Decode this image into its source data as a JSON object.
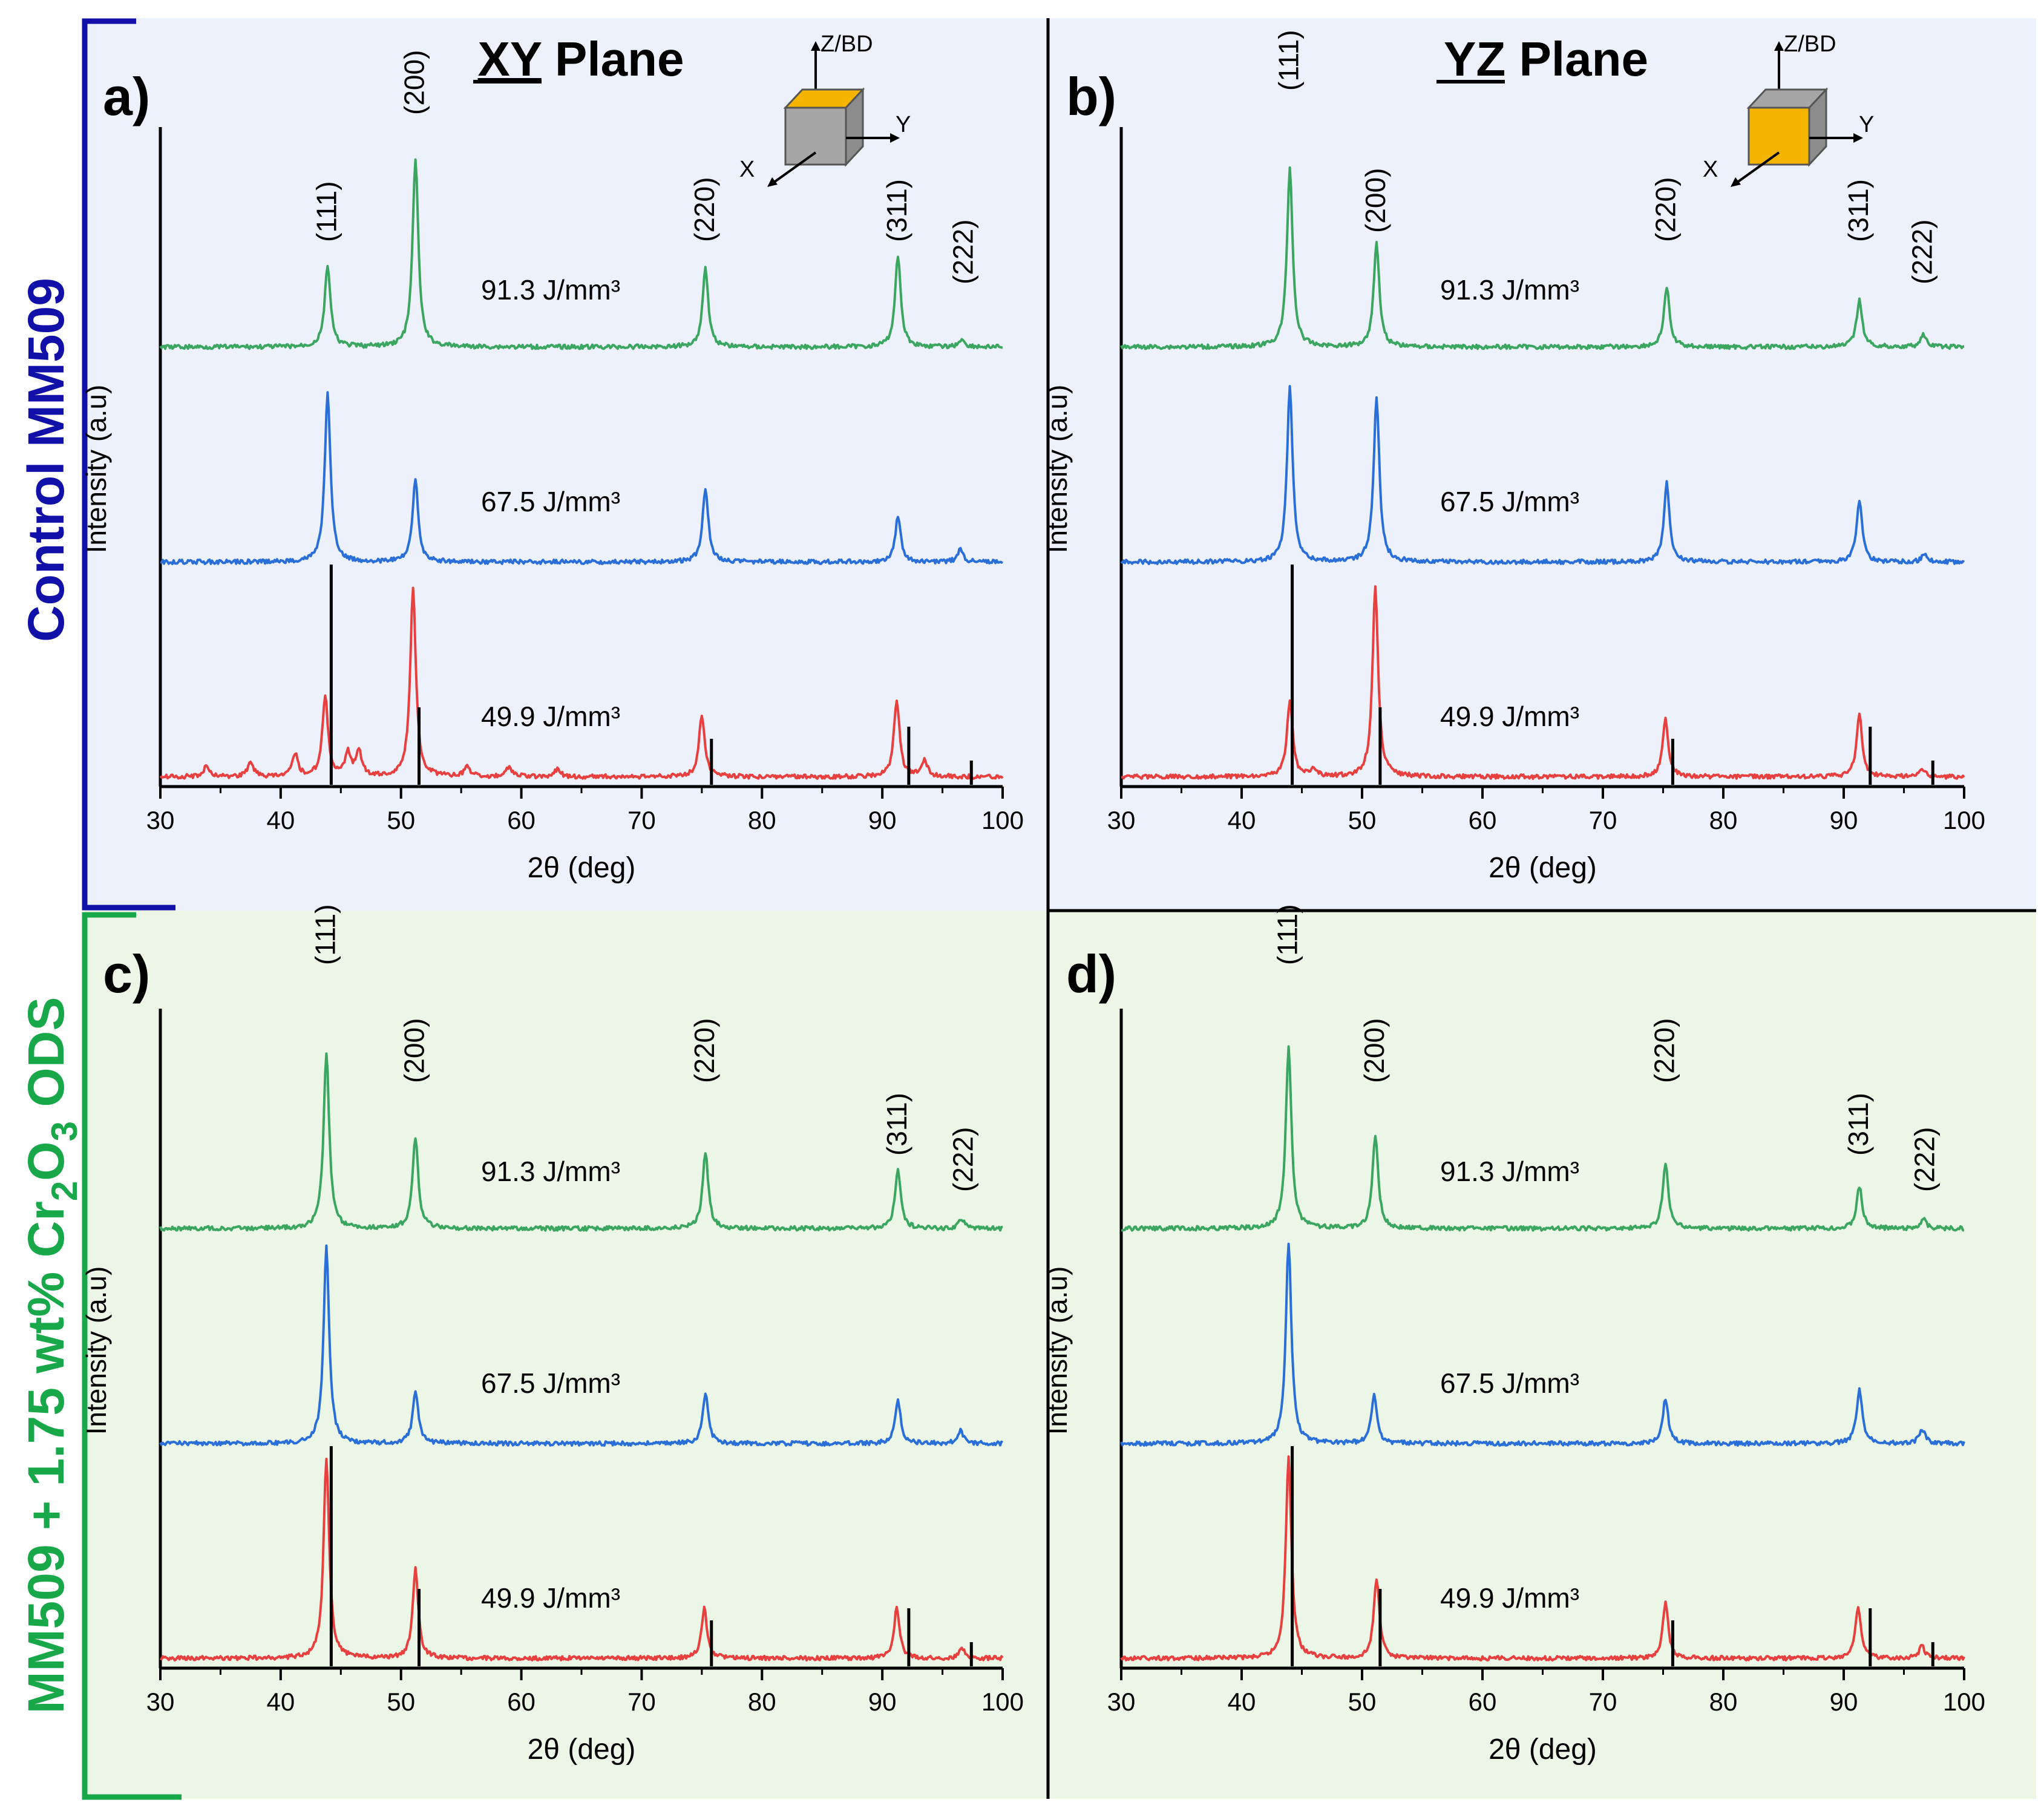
{
  "row_labels": {
    "top": "Control MM509",
    "bottom_prefix": "MM509 + 1.75 wt% Cr",
    "bottom_sub1": "2",
    "bottom_mid": "O",
    "bottom_sub2": "3",
    "bottom_suffix": " ODS"
  },
  "planes": {
    "xy": {
      "bold": "XY",
      "rest": " Plane"
    },
    "yz": {
      "bold": "YZ",
      "rest": " Plane"
    }
  },
  "axes_icon": {
    "z": "Z/BD",
    "x": "X",
    "y": "Y"
  },
  "colors": {
    "top_bg": "#edf1fb",
    "bottom_bg": "#ecf6e7",
    "top_bracket": "#1111aa",
    "bottom_bracket": "#18a84a",
    "green": "#3aa660",
    "blue": "#2a6ed8",
    "red": "#e83f3f",
    "face_top": "#f5b400",
    "cube": "#a6a6a6"
  },
  "chart_data": [
    {
      "panel_label": "a)",
      "type": "line",
      "title": "XY Plane",
      "xlabel": "2θ (deg)",
      "ylabel": "Intensity (a.u)",
      "xlim": [
        30,
        100
      ],
      "xticks": [
        30,
        40,
        50,
        60,
        70,
        80,
        90,
        100
      ],
      "series": [
        {
          "name": "91.3 J/mm³",
          "color": "green",
          "baseline": 0.16,
          "peaks": [
            [
              43.9,
              0.33
            ],
            [
              51.2,
              0.76
            ],
            [
              75.3,
              0.32
            ],
            [
              91.3,
              0.37
            ],
            [
              96.6,
              0.03
            ]
          ]
        },
        {
          "name": "67.5 J/mm³",
          "color": "blue",
          "baseline": 0.03,
          "peaks": [
            [
              43.9,
              0.68
            ],
            [
              51.2,
              0.33
            ],
            [
              75.3,
              0.3
            ],
            [
              91.3,
              0.18
            ],
            [
              96.5,
              0.05
            ]
          ]
        },
        {
          "name": "49.9 J/mm³",
          "color": "red",
          "baseline": 0.03,
          "peaks": [
            [
              33.8,
              0.04
            ],
            [
              37.5,
              0.06
            ],
            [
              41.2,
              0.09
            ],
            [
              43.7,
              0.32
            ],
            [
              45.6,
              0.09
            ],
            [
              46.5,
              0.1
            ],
            [
              51.0,
              0.76
            ],
            [
              55.5,
              0.04
            ],
            [
              59.0,
              0.04
            ],
            [
              63.0,
              0.03
            ],
            [
              75.0,
              0.25
            ],
            [
              91.2,
              0.31
            ],
            [
              93.5,
              0.07
            ]
          ]
        }
      ],
      "reference_lines": [
        {
          "x": 44.2,
          "height": 0.88
        },
        {
          "x": 51.5,
          "height": 0.29
        },
        {
          "x": 75.8,
          "height": 0.16
        },
        {
          "x": 92.2,
          "height": 0.21
        },
        {
          "x": 97.4,
          "height": 0.07
        }
      ],
      "peak_labels": [
        {
          "text": "(111)",
          "x": 43.9
        },
        {
          "text": "(200)",
          "x": 51.2
        },
        {
          "text": "(220)",
          "x": 75.3
        },
        {
          "text": "(311)",
          "x": 91.3
        },
        {
          "text": "(222)",
          "x": 96.8
        }
      ]
    },
    {
      "panel_label": "b)",
      "type": "line",
      "title": "YZ Plane",
      "xlabel": "2θ (deg)",
      "ylabel": "Intensity (a.u)",
      "xlim": [
        30,
        100
      ],
      "xticks": [
        30,
        40,
        50,
        60,
        70,
        80,
        90,
        100
      ],
      "series": [
        {
          "name": "91.3 J/mm³",
          "color": "green",
          "baseline": 0.16,
          "peaks": [
            [
              44.0,
              0.72
            ],
            [
              51.2,
              0.42
            ],
            [
              75.3,
              0.24
            ],
            [
              91.3,
              0.19
            ],
            [
              96.6,
              0.05
            ]
          ]
        },
        {
          "name": "67.5 J/mm³",
          "color": "blue",
          "baseline": 0.03,
          "peaks": [
            [
              44.0,
              0.7
            ],
            [
              51.2,
              0.67
            ],
            [
              75.3,
              0.32
            ],
            [
              91.3,
              0.25
            ],
            [
              96.7,
              0.03
            ]
          ]
        },
        {
          "name": "49.9 J/mm³",
          "color": "red",
          "baseline": 0.03,
          "peaks": [
            [
              44.0,
              0.31
            ],
            [
              46.0,
              0.03
            ],
            [
              51.1,
              0.76
            ],
            [
              75.2,
              0.23
            ],
            [
              91.3,
              0.25
            ],
            [
              96.5,
              0.03
            ]
          ]
        }
      ],
      "reference_lines": [
        {
          "x": 44.2,
          "height": 0.88
        },
        {
          "x": 51.5,
          "height": 0.29
        },
        {
          "x": 75.8,
          "height": 0.16
        },
        {
          "x": 92.2,
          "height": 0.21
        },
        {
          "x": 97.4,
          "height": 0.07
        }
      ],
      "peak_labels": [
        {
          "text": "(111)",
          "x": 44.0
        },
        {
          "text": "(200)",
          "x": 51.2
        },
        {
          "text": "(220)",
          "x": 75.3
        },
        {
          "text": "(311)",
          "x": 91.3
        },
        {
          "text": "(222)",
          "x": 96.6
        }
      ]
    },
    {
      "panel_label": "c)",
      "type": "line",
      "title": "",
      "xlabel": "2θ (deg)",
      "ylabel": "Intensity (a.u)",
      "xlim": [
        30,
        100
      ],
      "xticks": [
        30,
        40,
        50,
        60,
        70,
        80,
        90,
        100
      ],
      "series": [
        {
          "name": "91.3 J/mm³",
          "color": "green",
          "baseline": 0.16,
          "peaks": [
            [
              43.8,
              0.71
            ],
            [
              51.2,
              0.37
            ],
            [
              75.3,
              0.31
            ],
            [
              91.3,
              0.24
            ],
            [
              96.6,
              0.04
            ]
          ]
        },
        {
          "name": "67.5 J/mm³",
          "color": "blue",
          "baseline": 0.03,
          "peaks": [
            [
              43.8,
              0.79
            ],
            [
              51.2,
              0.21
            ],
            [
              75.3,
              0.2
            ],
            [
              91.3,
              0.17
            ],
            [
              96.5,
              0.05
            ]
          ]
        },
        {
          "name": "49.9 J/mm³",
          "color": "red",
          "baseline": 0.03,
          "peaks": [
            [
              43.8,
              0.8
            ],
            [
              51.2,
              0.36
            ],
            [
              75.2,
              0.2
            ],
            [
              91.2,
              0.2
            ],
            [
              96.6,
              0.04
            ]
          ]
        }
      ],
      "reference_lines": [
        {
          "x": 44.2,
          "height": 0.88
        },
        {
          "x": 51.5,
          "height": 0.29
        },
        {
          "x": 75.8,
          "height": 0.16
        },
        {
          "x": 92.2,
          "height": 0.21
        },
        {
          "x": 97.4,
          "height": 0.07
        }
      ],
      "peak_labels": [
        {
          "text": "(111)",
          "x": 43.8
        },
        {
          "text": "(200)",
          "x": 51.2
        },
        {
          "text": "(220)",
          "x": 75.3
        },
        {
          "text": "(311)",
          "x": 91.3
        },
        {
          "text": "(222)",
          "x": 96.8
        }
      ]
    },
    {
      "panel_label": "d)",
      "type": "line",
      "title": "",
      "xlabel": "2θ (deg)",
      "ylabel": "Intensity (a.u)",
      "xlim": [
        30,
        100
      ],
      "xticks": [
        30,
        40,
        50,
        60,
        70,
        80,
        90,
        100
      ],
      "series": [
        {
          "name": "91.3 J/mm³",
          "color": "green",
          "baseline": 0.16,
          "peaks": [
            [
              43.9,
              0.73
            ],
            [
              51.1,
              0.38
            ],
            [
              75.2,
              0.26
            ],
            [
              91.3,
              0.17
            ],
            [
              96.6,
              0.04
            ]
          ]
        },
        {
          "name": "67.5 J/mm³",
          "color": "blue",
          "baseline": 0.03,
          "peaks": [
            [
              43.9,
              0.81
            ],
            [
              51.0,
              0.19
            ],
            [
              75.2,
              0.18
            ],
            [
              91.3,
              0.22
            ],
            [
              96.5,
              0.06
            ]
          ]
        },
        {
          "name": "49.9 J/mm³",
          "color": "red",
          "baseline": 0.03,
          "peaks": [
            [
              43.9,
              0.81
            ],
            [
              51.2,
              0.32
            ],
            [
              75.2,
              0.22
            ],
            [
              91.2,
              0.21
            ],
            [
              96.5,
              0.05
            ]
          ]
        }
      ],
      "reference_lines": [
        {
          "x": 44.2,
          "height": 0.88
        },
        {
          "x": 51.5,
          "height": 0.29
        },
        {
          "x": 75.8,
          "height": 0.16
        },
        {
          "x": 92.2,
          "height": 0.21
        },
        {
          "x": 97.4,
          "height": 0.07
        }
      ],
      "peak_labels": [
        {
          "text": "(111)",
          "x": 43.9
        },
        {
          "text": "(200)",
          "x": 51.1
        },
        {
          "text": "(220)",
          "x": 75.2
        },
        {
          "text": "(311)",
          "x": 91.3
        },
        {
          "text": "(222)",
          "x": 96.8
        }
      ]
    }
  ]
}
